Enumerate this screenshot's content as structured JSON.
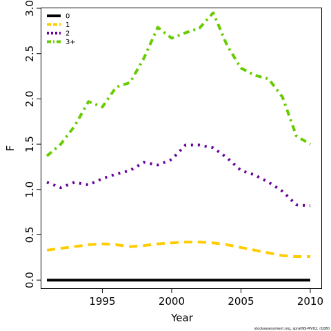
{
  "chart_data": {
    "type": "line",
    "title": "",
    "xlabel": "Year",
    "ylabel": "F",
    "xlim": [
      1990.6,
      2010.8
    ],
    "ylim": [
      -0.09,
      3.0
    ],
    "x_ticks": [
      1995,
      2000,
      2005,
      2010
    ],
    "y_ticks": [
      0.0,
      0.5,
      1.0,
      1.5,
      2.0,
      2.5,
      3.0
    ],
    "x_tick_labels": [
      "1995",
      "2000",
      "2005",
      "2010"
    ],
    "y_tick_labels": [
      "0.0",
      "0.5",
      "1.0",
      "1.5",
      "2.0",
      "2.5",
      "3.0"
    ],
    "grid": false,
    "legend_position": "top-left",
    "x": [
      1991,
      1992,
      1993,
      1994,
      1995,
      1996,
      1997,
      1998,
      1999,
      2000,
      2001,
      2002,
      2003,
      2004,
      2005,
      2006,
      2007,
      2008,
      2009,
      2010
    ],
    "series": [
      {
        "name": "0",
        "color": "#000000",
        "dash": "solid",
        "values": [
          0.0,
          0.0,
          0.0,
          0.0,
          0.0,
          0.0,
          0.0,
          0.0,
          0.0,
          0.0,
          0.0,
          0.0,
          0.0,
          0.0,
          0.0,
          0.0,
          0.0,
          0.0,
          0.0,
          0.0
        ]
      },
      {
        "name": "1",
        "color": "#FFCC00",
        "dash": "dashed",
        "values": [
          0.33,
          0.35,
          0.37,
          0.39,
          0.4,
          0.39,
          0.37,
          0.38,
          0.4,
          0.41,
          0.42,
          0.42,
          0.41,
          0.39,
          0.36,
          0.33,
          0.3,
          0.27,
          0.26,
          0.26
        ]
      },
      {
        "name": "2",
        "color": "#660099",
        "dash": "dotted",
        "values": [
          1.08,
          1.02,
          1.08,
          1.05,
          1.12,
          1.17,
          1.21,
          1.3,
          1.27,
          1.33,
          1.49,
          1.49,
          1.46,
          1.35,
          1.21,
          1.16,
          1.08,
          0.98,
          0.83,
          0.82
        ]
      },
      {
        "name": "3+",
        "color": "#66CC00",
        "dash": "dashdot",
        "values": [
          1.37,
          1.5,
          1.7,
          1.97,
          1.91,
          2.13,
          2.18,
          2.45,
          2.79,
          2.67,
          2.73,
          2.78,
          2.95,
          2.59,
          2.34,
          2.26,
          2.22,
          2.02,
          1.59,
          1.5
        ]
      }
    ]
  },
  "credit_text": "stockassessment.org, spratNS-MV02, r1080"
}
